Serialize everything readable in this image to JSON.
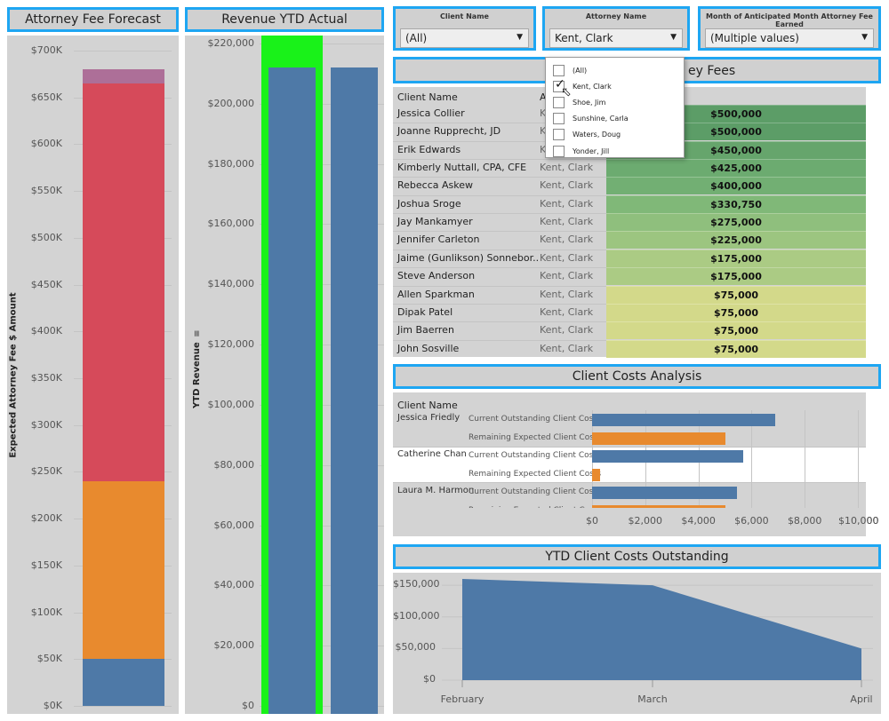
{
  "colors": {
    "title_border": "#1ea6f2",
    "panel_bg": "#d3d3d3",
    "blue": "#4e79a7",
    "orange": "#e88a2e",
    "red": "#d64a5a",
    "purple": "#ad6f98",
    "green_highlight": "#19f219"
  },
  "forecast": {
    "title": "Attorney Fee Forecast",
    "ylabel": "Expected Attorney Fee $ Amount",
    "ticks": [
      "$700K",
      "$650K",
      "$600K",
      "$550K",
      "$500K",
      "$450K",
      "$400K",
      "$350K",
      "$300K",
      "$250K",
      "$200K",
      "$150K",
      "$100K",
      "$50K",
      "$0K"
    ]
  },
  "revenue": {
    "title": "Revenue YTD Actual",
    "ylabel": "YTD Revenue",
    "ticks": [
      "$220,000",
      "$200,000",
      "$180,000",
      "$160,000",
      "$140,000",
      "$120,000",
      "$100,000",
      "$80,000",
      "$60,000",
      "$40,000",
      "$20,000",
      "$0"
    ]
  },
  "filters": {
    "client": {
      "label": "Client Name",
      "value": "(All)"
    },
    "attorney": {
      "label": "Attorney Name",
      "value": "Kent, Clark"
    },
    "month": {
      "label": "Month of Anticipated Month Attorney Fee Earned",
      "value": "(Multiple values)"
    }
  },
  "attorney_dropdown": {
    "options": [
      {
        "label": "(All)",
        "checked": false
      },
      {
        "label": "Kent, Clark",
        "checked": true
      },
      {
        "label": "Shoe, Jim",
        "checked": false
      },
      {
        "label": "Sunshine, Carla",
        "checked": false
      },
      {
        "label": "Waters, Doug",
        "checked": false
      },
      {
        "label": "Yonder, Jill",
        "checked": false
      }
    ]
  },
  "fees_table": {
    "title_visible": "ey Fees",
    "header_client": "Client Name",
    "header_attorney": "At",
    "rows": [
      {
        "client": "Jessica Collier",
        "attorney": "Kent, Clark",
        "fee": "$500,000",
        "color": "#5c9d67"
      },
      {
        "client": "Joanne Rupprecht, JD",
        "attorney": "Kent, Clark",
        "fee": "$500,000",
        "color": "#5c9d67"
      },
      {
        "client": "Erik Edwards",
        "attorney": "Kent, Clark",
        "fee": "$450,000",
        "color": "#66a56c"
      },
      {
        "client": "Kimberly Nuttall, CPA, CFE",
        "attorney": "Kent, Clark",
        "fee": "$425,000",
        "color": "#6cab70"
      },
      {
        "client": "Rebecca Askew",
        "attorney": "Kent, Clark",
        "fee": "$400,000",
        "color": "#72af73"
      },
      {
        "client": "Joshua Sroge",
        "attorney": "Kent, Clark",
        "fee": "$330,750",
        "color": "#80b878"
      },
      {
        "client": "Jay Mankamyer",
        "attorney": "Kent, Clark",
        "fee": "$275,000",
        "color": "#8fbf7d"
      },
      {
        "client": "Jennifer Carleton",
        "attorney": "Kent, Clark",
        "fee": "$225,000",
        "color": "#9cc580"
      },
      {
        "client": "Jaime (Gunlikson) Sonnebor..",
        "attorney": "Kent, Clark",
        "fee": "$175,000",
        "color": "#abcb84"
      },
      {
        "client": "Steve Anderson",
        "attorney": "Kent, Clark",
        "fee": "$175,000",
        "color": "#abcb84"
      },
      {
        "client": "Allen Sparkman",
        "attorney": "Kent, Clark",
        "fee": "$75,000",
        "color": "#d3d98a"
      },
      {
        "client": "Dipak Patel",
        "attorney": "Kent, Clark",
        "fee": "$75,000",
        "color": "#d3d98a"
      },
      {
        "client": "Jim Baerren",
        "attorney": "Kent, Clark",
        "fee": "$75,000",
        "color": "#d3d98a"
      },
      {
        "client": "John Sosville",
        "attorney": "Kent, Clark",
        "fee": "$75,000",
        "color": "#d3d98a"
      }
    ]
  },
  "costs": {
    "title": "Client Costs Analysis",
    "header": "Client Name",
    "measure_outstanding": "Current Outstanding Client Cos..",
    "measure_remaining": "Remaining Expected Client Costs",
    "ticks": [
      "$0",
      "$2,000",
      "$4,000",
      "$6,000",
      "$8,000",
      "$10,000"
    ]
  },
  "ytd_costs": {
    "title": "YTD Client Costs Outstanding",
    "yticks": [
      "$150,000",
      "$100,000",
      "$50,000",
      "$0"
    ]
  },
  "chart_data": [
    {
      "type": "bar",
      "title": "Attorney Fee Forecast",
      "ylabel": "Expected Attorney Fee $ Amount",
      "ylim": [
        0,
        715000
      ],
      "stacked": true,
      "segments": [
        {
          "color": "#4e79a7",
          "value": 50000
        },
        {
          "color": "#e88a2e",
          "value": 190000
        },
        {
          "color": "#d64a5a",
          "value": 425000
        },
        {
          "color": "#ad6f98",
          "value": 15000
        }
      ]
    },
    {
      "type": "bar",
      "title": "Revenue YTD Actual",
      "ylabel": "YTD Revenue",
      "ylim": [
        0,
        222000
      ],
      "values": [
        212000,
        212000
      ],
      "highlight_first": true
    },
    {
      "type": "bar",
      "title": "Client Costs Analysis",
      "orientation": "horizontal",
      "xlim": [
        0,
        10500
      ],
      "groups": [
        {
          "client": "Jessica Friedly",
          "current_outstanding": 6900,
          "remaining_expected": 5000
        },
        {
          "client": "Catherine Chan",
          "current_outstanding": 5700,
          "remaining_expected": 300
        },
        {
          "client": "Laura M. Harmon",
          "current_outstanding": 5450,
          "remaining_expected": 5000
        }
      ]
    },
    {
      "type": "area",
      "title": "YTD Client Costs Outstanding",
      "x": [
        "February",
        "March",
        "April"
      ],
      "values": [
        160000,
        150000,
        50000
      ],
      "ylim": [
        0,
        160000
      ]
    }
  ]
}
